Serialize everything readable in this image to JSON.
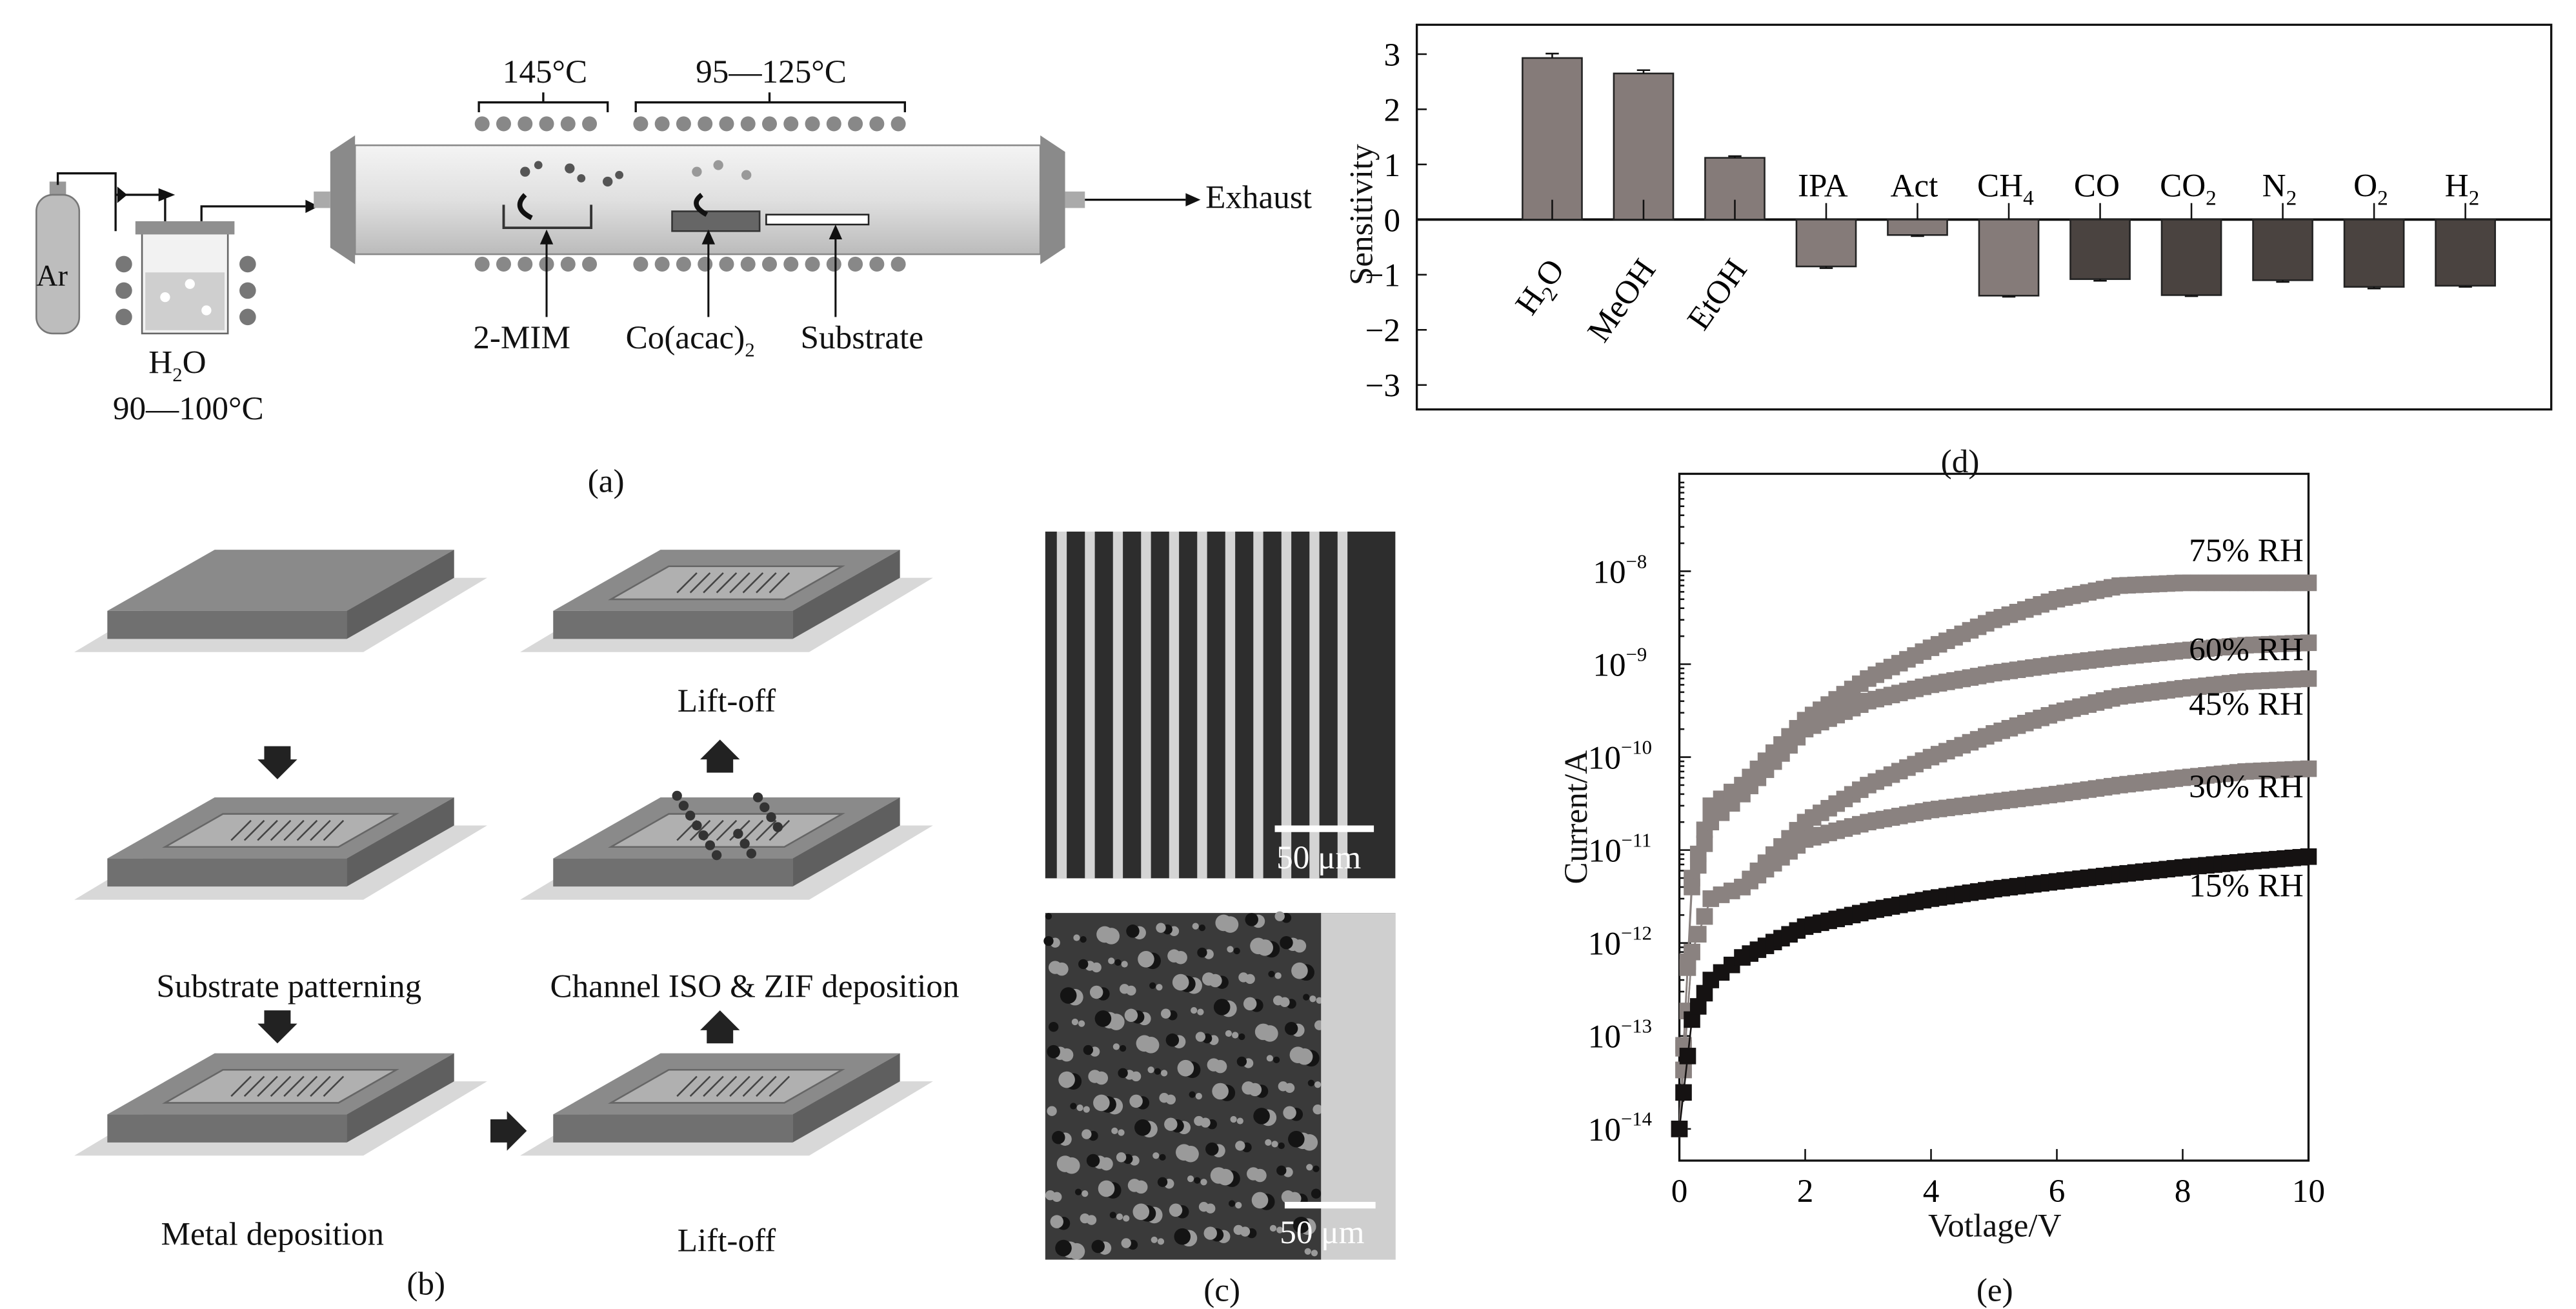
{
  "panel_a": {
    "label": "(a)",
    "gas": "Ar",
    "water_main": "H",
    "water_sub": "2",
    "water_tail": "O",
    "water_temp": "90—100°C",
    "zone1_temp": "145°C",
    "zone2_temp": "95—125°C",
    "precursor1": "2-MIM",
    "precursor2_main": "Co(acac)",
    "precursor2_sub": "2",
    "substrate": "Substrate",
    "exhaust": "Exhaust"
  },
  "panel_b": {
    "label": "(b)",
    "steps": [
      "Substrate patterning",
      "Metal deposition",
      "Lift-off",
      "Channel ISO & ZIF deposition",
      "Lift-off"
    ]
  },
  "panel_c": {
    "label": "(c)",
    "scale_top": "50 μm",
    "scale_bottom": "50 μm"
  },
  "chart_data": [
    {
      "panel": "(d)",
      "type": "bar",
      "ylabel": "Sensitivity",
      "ylim": [
        -3.4,
        3.5
      ],
      "yticks": [
        "3",
        "2",
        "1",
        "0",
        "−1",
        "−2",
        "−3"
      ],
      "yticks_values": [
        3,
        2,
        1,
        0,
        -1,
        -2,
        -3
      ],
      "categories": [
        {
          "main": "H",
          "sub": "2",
          "tail": "O"
        },
        {
          "main": "MeOH",
          "sub": "",
          "tail": ""
        },
        {
          "main": "EtOH",
          "sub": "",
          "tail": ""
        },
        {
          "main": "IPA",
          "sub": "",
          "tail": ""
        },
        {
          "main": "Act",
          "sub": "",
          "tail": ""
        },
        {
          "main": "CH",
          "sub": "4",
          "tail": ""
        },
        {
          "main": "CO",
          "sub": "",
          "tail": ""
        },
        {
          "main": "CO",
          "sub": "2",
          "tail": ""
        },
        {
          "main": "N",
          "sub": "2",
          "tail": ""
        },
        {
          "main": "O",
          "sub": "2",
          "tail": ""
        },
        {
          "main": "H",
          "sub": "2",
          "tail": ""
        }
      ],
      "values": [
        2.93,
        2.65,
        1.12,
        -0.85,
        -0.28,
        -1.38,
        -1.08,
        -1.37,
        -1.1,
        -1.22,
        -1.2
      ],
      "errors": [
        0.08,
        0.06,
        0.03,
        0.03,
        0.02,
        0.02,
        0.03,
        0.02,
        0.03,
        0.03,
        0.02
      ],
      "colors": [
        "#857b79",
        "#857b79",
        "#857b79",
        "#857b79",
        "#857b79",
        "#857b79",
        "#4a4340",
        "#4a4340",
        "#4a4340",
        "#4a4340",
        "#4a4340"
      ],
      "grid": false
    },
    {
      "panel": "(e)",
      "type": "line",
      "xlabel": "Votlage/V",
      "ylabel": "Current/A",
      "xlim": [
        0,
        10
      ],
      "ylim": [
        5e-15,
        1.1e-07
      ],
      "yscale": "log",
      "xticks": [
        "0",
        "2",
        "4",
        "6",
        "8",
        "10"
      ],
      "yticks": [
        {
          "base": "10",
          "exp": "−8",
          "value": 1e-08
        },
        {
          "base": "10",
          "exp": "−9",
          "value": 1e-09
        },
        {
          "base": "10",
          "exp": "−10",
          "value": 1e-10
        },
        {
          "base": "10",
          "exp": "−11",
          "value": 1e-11
        },
        {
          "base": "10",
          "exp": "−12",
          "value": 1e-12
        },
        {
          "base": "10",
          "exp": "−13",
          "value": 1e-13
        },
        {
          "base": "10",
          "exp": "−14",
          "value": 1e-14
        }
      ],
      "x": [
        0,
        0.2,
        0.5,
        1,
        2,
        3,
        4,
        5,
        6,
        7,
        8,
        9,
        10
      ],
      "series": [
        {
          "name": "75% RH",
          "color": "#8a8280",
          "values": [
            1e-14,
            5e-12,
            3e-11,
            5e-11,
            2.5e-10,
            7e-10,
            1.5e-09,
            3e-09,
            5e-09,
            7e-09,
            7.5e-09,
            7.5e-09,
            7.5e-09
          ]
        },
        {
          "name": "60% RH",
          "color": "#8a8280",
          "values": [
            1e-14,
            4e-12,
            2e-11,
            4e-11,
            2e-10,
            4e-10,
            6e-10,
            8e-10,
            1e-09,
            1.2e-09,
            1.4e-09,
            1.6e-09,
            1.7e-09
          ]
        },
        {
          "name": "45% RH",
          "color": "#8a8280",
          "values": [
            1e-14,
            8e-13,
            3e-12,
            4e-12,
            2e-11,
            5e-11,
            1e-10,
            1.8e-10,
            3e-10,
            4.5e-10,
            5.5e-10,
            6.5e-10,
            7e-10
          ]
        },
        {
          "name": "30% RH",
          "color": "#8a8280",
          "values": [
            1e-14,
            8e-13,
            3e-12,
            4e-12,
            1.3e-11,
            2e-11,
            2.7e-11,
            3.3e-11,
            4e-11,
            5e-11,
            6e-11,
            7e-11,
            7.5e-11
          ]
        },
        {
          "name": "15% RH",
          "color": "#151212",
          "values": [
            1e-14,
            1.5e-13,
            4e-13,
            7e-13,
            1.5e-12,
            2.2e-12,
            3e-12,
            3.8e-12,
            4.6e-12,
            5.5e-12,
            6.5e-12,
            7.5e-12,
            8.5e-12
          ]
        }
      ],
      "grid": false
    }
  ]
}
